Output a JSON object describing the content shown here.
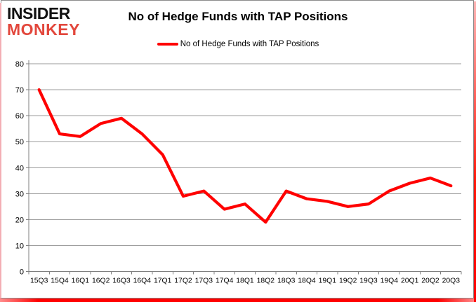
{
  "logo": {
    "line1": "INSIDER",
    "line2": "MONKEY"
  },
  "header": {
    "title": "No of Hedge Funds with TAP Positions"
  },
  "legend": {
    "label": "No of Hedge Funds with TAP Positions",
    "swatch_color": "#ff0000"
  },
  "theme": {
    "line_red": "#ff0000",
    "logo_red": "#e2473c",
    "grid_gray": "#9b9b9b",
    "axis_gray": "#7f7f7f",
    "frame_border_gray": "#8c8c8c",
    "background": "#ffffff"
  },
  "chart_data": {
    "type": "line",
    "title": "No of Hedge Funds with TAP Positions",
    "categories": [
      "15Q3",
      "15Q4",
      "16Q1",
      "16Q2",
      "16Q3",
      "16Q4",
      "17Q1",
      "17Q2",
      "17Q3",
      "17Q4",
      "18Q1",
      "18Q2",
      "18Q3",
      "18Q4",
      "19Q1",
      "19Q2",
      "19Q3",
      "19Q4",
      "20Q1",
      "20Q2",
      "20Q3"
    ],
    "series": [
      {
        "name": "No of Hedge Funds with TAP Positions",
        "color": "#ff0000",
        "values": [
          70,
          53,
          52,
          57,
          59,
          53,
          45,
          29,
          31,
          24,
          26,
          19,
          31,
          28,
          27,
          25,
          26,
          31,
          34,
          36,
          33
        ]
      }
    ],
    "xlabel": "",
    "ylabel": "",
    "ylim": [
      0,
      80
    ],
    "yticks": [
      0,
      10,
      20,
      30,
      40,
      50,
      60,
      70,
      80
    ],
    "grid": true,
    "legend_position": "top"
  }
}
